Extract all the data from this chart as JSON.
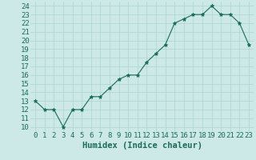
{
  "xlabel": "Humidex (Indice chaleur)",
  "x": [
    0,
    1,
    2,
    3,
    4,
    5,
    6,
    7,
    8,
    9,
    10,
    11,
    12,
    13,
    14,
    15,
    16,
    17,
    18,
    19,
    20,
    21,
    22,
    23
  ],
  "y": [
    13,
    12,
    12,
    10,
    12,
    12,
    13.5,
    13.5,
    14.5,
    15.5,
    16,
    16,
    17.5,
    18.5,
    19.5,
    22,
    22.5,
    23,
    23,
    24,
    23,
    23,
    22,
    19.5
  ],
  "line_color": "#1a6b5a",
  "marker": "*",
  "bg_color": "#cce9e7",
  "grid_color": "#aad4d0",
  "ylim_min": 9.5,
  "ylim_max": 24.5,
  "xlim_min": -0.5,
  "xlim_max": 23.5,
  "yticks": [
    10,
    11,
    12,
    13,
    14,
    15,
    16,
    17,
    18,
    19,
    20,
    21,
    22,
    23,
    24
  ],
  "xticks": [
    0,
    1,
    2,
    3,
    4,
    5,
    6,
    7,
    8,
    9,
    10,
    11,
    12,
    13,
    14,
    15,
    16,
    17,
    18,
    19,
    20,
    21,
    22,
    23
  ],
  "tick_color": "#1a6b5a",
  "label_color": "#1a6b5a",
  "axis_fontsize": 7.5,
  "tick_fontsize": 6.5
}
